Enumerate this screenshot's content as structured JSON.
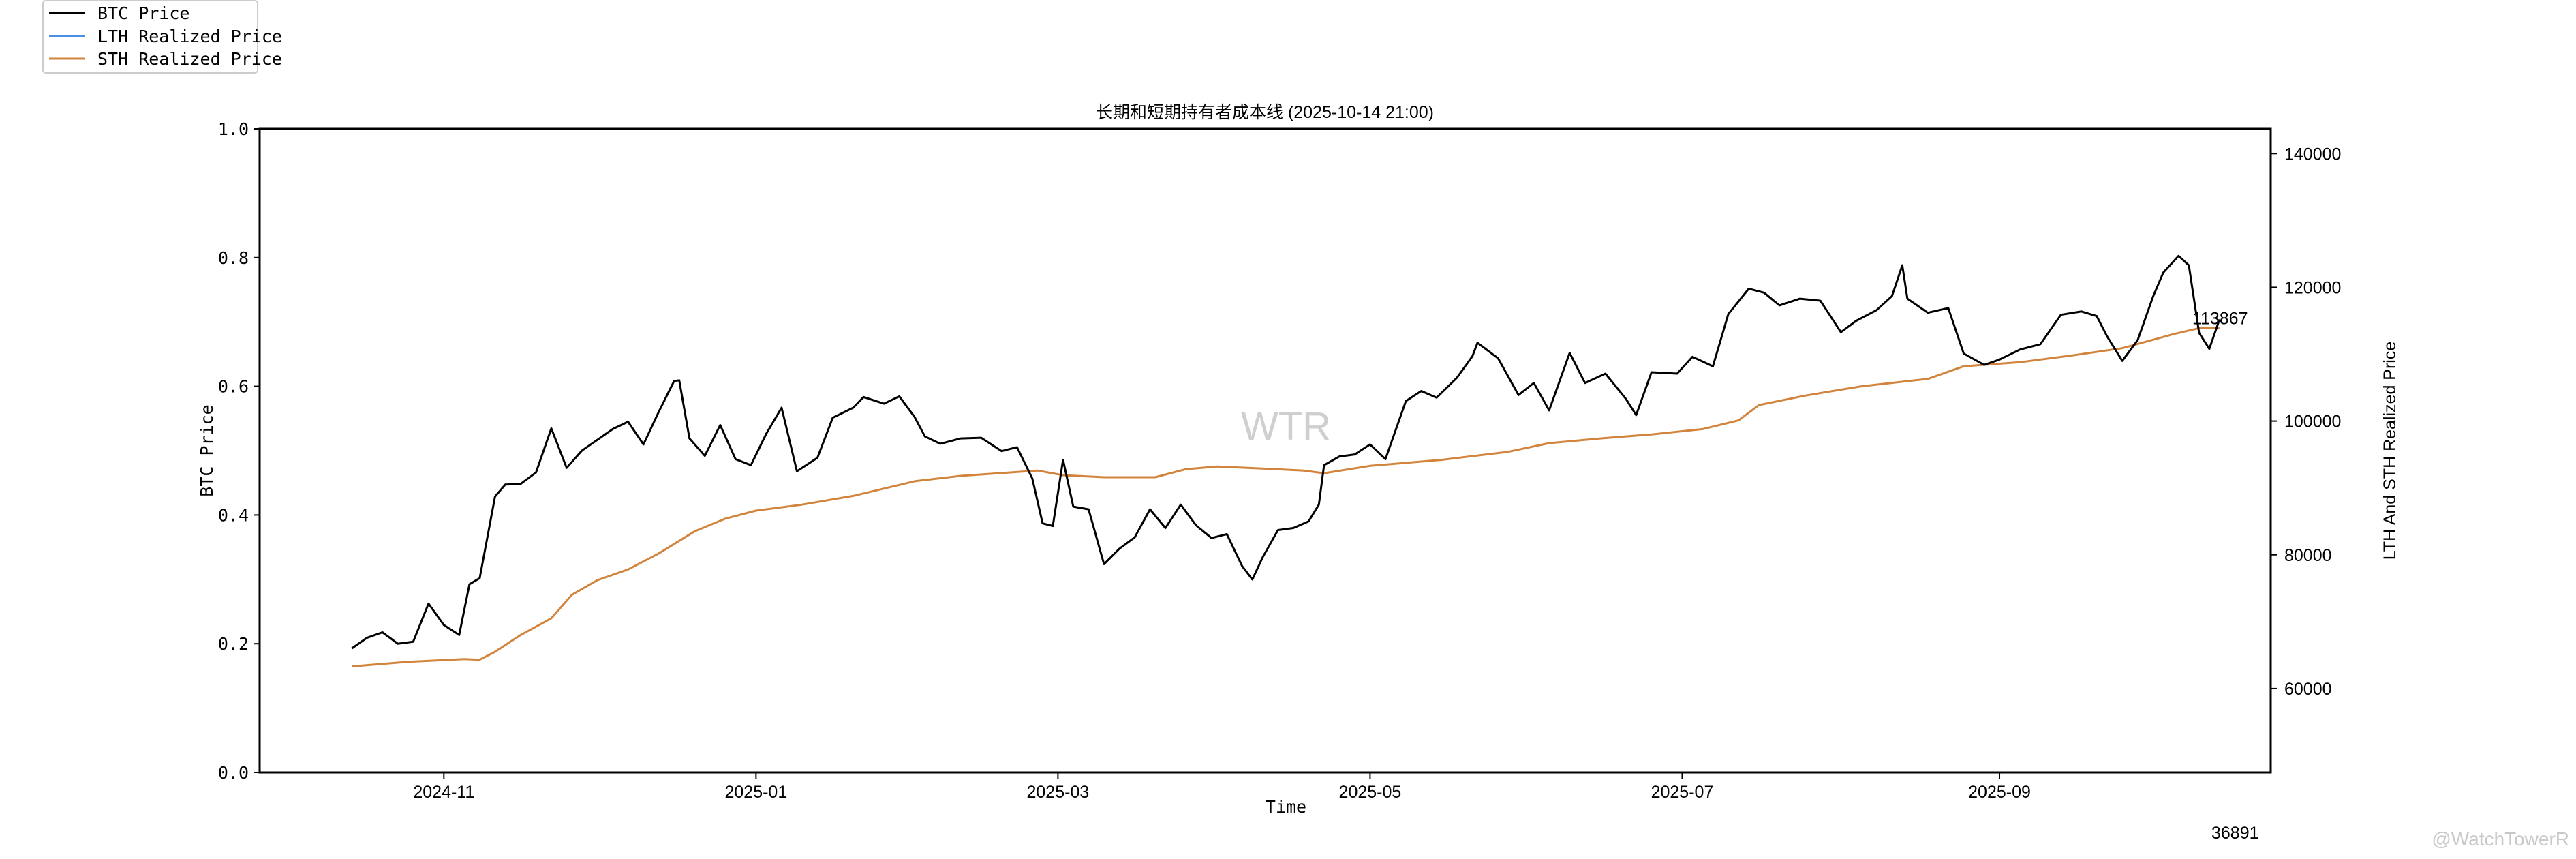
{
  "chart_data": {
    "type": "line",
    "title": "长期和短期持有者成本线 (2025-10-14 21:00)",
    "xlabel": "Time",
    "ylabel_left": "BTC Price",
    "ylabel_right": "LTH And STH Realized Price",
    "xlim": [
      "2024-09-26",
      "2025-10-24"
    ],
    "ylim_left": [
      0.0,
      1.0
    ],
    "ylim_right": [
      47450,
      143700
    ],
    "x_ticks": [
      "2024-11",
      "2025-01",
      "2025-03",
      "2025-05",
      "2025-07",
      "2025-09"
    ],
    "y_left_ticks": [
      "0.0",
      "0.2",
      "0.4",
      "0.6",
      "0.8",
      "1.0"
    ],
    "y_right_ticks": [
      60000,
      80000,
      100000,
      120000,
      140000
    ],
    "grid": false,
    "legend": {
      "placement": "top-left",
      "entries": [
        {
          "name": "BTC Price",
          "color": "#000000"
        },
        {
          "name": "LTH Realized Price",
          "color": "#4a90e2"
        },
        {
          "name": "STH Realized Price",
          "color": "#d2843c"
        }
      ]
    },
    "annotation": "113867",
    "footer_number": "36891",
    "watermark_center": "WTR",
    "watermark_corner": "@WatchTowerR",
    "series": [
      {
        "name": "BTC Price",
        "color": "#000000",
        "axis": "right",
        "points": [
          [
            "2024-10-14",
            66000
          ],
          [
            "2024-10-17",
            67600
          ],
          [
            "2024-10-20",
            68400
          ],
          [
            "2024-10-23",
            66700
          ],
          [
            "2024-10-26",
            67000
          ],
          [
            "2024-10-29",
            72700
          ],
          [
            "2024-11-01",
            69500
          ],
          [
            "2024-11-04",
            68000
          ],
          [
            "2024-11-06",
            75600
          ],
          [
            "2024-11-08",
            76500
          ],
          [
            "2024-11-11",
            88700
          ],
          [
            "2024-11-13",
            90500
          ],
          [
            "2024-11-16",
            90600
          ],
          [
            "2024-11-19",
            92300
          ],
          [
            "2024-11-22",
            98900
          ],
          [
            "2024-11-25",
            93000
          ],
          [
            "2024-11-28",
            95600
          ],
          [
            "2024-12-01",
            97200
          ],
          [
            "2024-12-04",
            98800
          ],
          [
            "2024-12-07",
            99900
          ],
          [
            "2024-12-10",
            96500
          ],
          [
            "2024-12-13",
            101400
          ],
          [
            "2024-12-16",
            106000
          ],
          [
            "2024-12-17",
            106100
          ],
          [
            "2024-12-19",
            97400
          ],
          [
            "2024-12-22",
            94800
          ],
          [
            "2024-12-25",
            99400
          ],
          [
            "2024-12-28",
            94300
          ],
          [
            "2024-12-31",
            93400
          ],
          [
            "2025-01-03",
            98100
          ],
          [
            "2025-01-06",
            102000
          ],
          [
            "2025-01-09",
            92500
          ],
          [
            "2025-01-13",
            94500
          ],
          [
            "2025-01-16",
            100500
          ],
          [
            "2025-01-20",
            102000
          ],
          [
            "2025-01-22",
            103600
          ],
          [
            "2025-01-26",
            102600
          ],
          [
            "2025-01-29",
            103700
          ],
          [
            "2025-02-01",
            100600
          ],
          [
            "2025-02-03",
            97700
          ],
          [
            "2025-02-06",
            96600
          ],
          [
            "2025-02-10",
            97400
          ],
          [
            "2025-02-14",
            97500
          ],
          [
            "2025-02-18",
            95500
          ],
          [
            "2025-02-21",
            96100
          ],
          [
            "2025-02-24",
            91400
          ],
          [
            "2025-02-26",
            84700
          ],
          [
            "2025-02-28",
            84300
          ],
          [
            "2025-03-02",
            94200
          ],
          [
            "2025-03-04",
            87200
          ],
          [
            "2025-03-07",
            86800
          ],
          [
            "2025-03-10",
            78600
          ],
          [
            "2025-03-13",
            80900
          ],
          [
            "2025-03-16",
            82600
          ],
          [
            "2025-03-19",
            86800
          ],
          [
            "2025-03-22",
            84000
          ],
          [
            "2025-03-25",
            87500
          ],
          [
            "2025-03-28",
            84400
          ],
          [
            "2025-03-31",
            82500
          ],
          [
            "2025-04-03",
            83100
          ],
          [
            "2025-04-06",
            78300
          ],
          [
            "2025-04-08",
            76300
          ],
          [
            "2025-04-10",
            79600
          ],
          [
            "2025-04-13",
            83700
          ],
          [
            "2025-04-16",
            84000
          ],
          [
            "2025-04-19",
            85000
          ],
          [
            "2025-04-21",
            87500
          ],
          [
            "2025-04-22",
            93400
          ],
          [
            "2025-04-25",
            94700
          ],
          [
            "2025-04-28",
            95000
          ],
          [
            "2025-05-01",
            96500
          ],
          [
            "2025-05-04",
            94300
          ],
          [
            "2025-05-08",
            103000
          ],
          [
            "2025-05-11",
            104500
          ],
          [
            "2025-05-14",
            103500
          ],
          [
            "2025-05-18",
            106500
          ],
          [
            "2025-05-21",
            109700
          ],
          [
            "2025-05-22",
            111700
          ],
          [
            "2025-05-26",
            109400
          ],
          [
            "2025-05-30",
            103900
          ],
          [
            "2025-06-02",
            105700
          ],
          [
            "2025-06-05",
            101600
          ],
          [
            "2025-06-09",
            110200
          ],
          [
            "2025-06-12",
            105700
          ],
          [
            "2025-06-16",
            107100
          ],
          [
            "2025-06-20",
            103300
          ],
          [
            "2025-06-22",
            100900
          ],
          [
            "2025-06-25",
            107300
          ],
          [
            "2025-06-30",
            107100
          ],
          [
            "2025-07-03",
            109600
          ],
          [
            "2025-07-07",
            108200
          ],
          [
            "2025-07-10",
            116000
          ],
          [
            "2025-07-14",
            119800
          ],
          [
            "2025-07-17",
            119200
          ],
          [
            "2025-07-20",
            117300
          ],
          [
            "2025-07-24",
            118300
          ],
          [
            "2025-07-28",
            118000
          ],
          [
            "2025-08-01",
            113300
          ],
          [
            "2025-08-04",
            115000
          ],
          [
            "2025-08-08",
            116600
          ],
          [
            "2025-08-11",
            118700
          ],
          [
            "2025-08-13",
            123300
          ],
          [
            "2025-08-14",
            118300
          ],
          [
            "2025-08-18",
            116200
          ],
          [
            "2025-08-22",
            116900
          ],
          [
            "2025-08-25",
            110100
          ],
          [
            "2025-08-29",
            108400
          ],
          [
            "2025-09-01",
            109200
          ],
          [
            "2025-09-05",
            110700
          ],
          [
            "2025-09-09",
            111500
          ],
          [
            "2025-09-13",
            115900
          ],
          [
            "2025-09-17",
            116400
          ],
          [
            "2025-09-20",
            115700
          ],
          [
            "2025-09-22",
            112700
          ],
          [
            "2025-09-25",
            109000
          ],
          [
            "2025-09-28",
            112100
          ],
          [
            "2025-10-01",
            118600
          ],
          [
            "2025-10-03",
            122200
          ],
          [
            "2025-10-06",
            124700
          ],
          [
            "2025-10-08",
            123300
          ],
          [
            "2025-10-10",
            113200
          ],
          [
            "2025-10-12",
            110800
          ],
          [
            "2025-10-14",
            115200
          ]
        ]
      },
      {
        "name": "STH Realized Price",
        "color": "#d2843c",
        "axis": "right",
        "points": [
          [
            "2024-10-14",
            63300
          ],
          [
            "2024-10-25",
            64000
          ],
          [
            "2024-11-05",
            64400
          ],
          [
            "2024-11-08",
            64300
          ],
          [
            "2024-11-11",
            65500
          ],
          [
            "2024-11-16",
            68000
          ],
          [
            "2024-11-22",
            70500
          ],
          [
            "2024-11-26",
            74000
          ],
          [
            "2024-12-01",
            76200
          ],
          [
            "2024-12-07",
            77800
          ],
          [
            "2024-12-13",
            80200
          ],
          [
            "2024-12-20",
            83500
          ],
          [
            "2024-12-26",
            85400
          ],
          [
            "2025-01-01",
            86600
          ],
          [
            "2025-01-10",
            87500
          ],
          [
            "2025-01-20",
            88800
          ],
          [
            "2025-02-01",
            91000
          ],
          [
            "2025-02-10",
            91800
          ],
          [
            "2025-02-25",
            92600
          ],
          [
            "2025-03-02",
            91900
          ],
          [
            "2025-03-10",
            91600
          ],
          [
            "2025-03-20",
            91600
          ],
          [
            "2025-03-26",
            92800
          ],
          [
            "2025-04-01",
            93200
          ],
          [
            "2025-04-10",
            92900
          ],
          [
            "2025-04-18",
            92600
          ],
          [
            "2025-04-22",
            92200
          ],
          [
            "2025-05-01",
            93300
          ],
          [
            "2025-05-15",
            94200
          ],
          [
            "2025-05-28",
            95400
          ],
          [
            "2025-06-05",
            96700
          ],
          [
            "2025-06-15",
            97400
          ],
          [
            "2025-06-25",
            98000
          ],
          [
            "2025-07-05",
            98800
          ],
          [
            "2025-07-12",
            100100
          ],
          [
            "2025-07-16",
            102400
          ],
          [
            "2025-07-25",
            103800
          ],
          [
            "2025-08-05",
            105200
          ],
          [
            "2025-08-18",
            106300
          ],
          [
            "2025-08-25",
            108200
          ],
          [
            "2025-09-05",
            108800
          ],
          [
            "2025-09-15",
            109800
          ],
          [
            "2025-09-25",
            110900
          ],
          [
            "2025-10-05",
            113000
          ],
          [
            "2025-10-10",
            113900
          ],
          [
            "2025-10-14",
            113867
          ]
        ]
      }
    ]
  }
}
